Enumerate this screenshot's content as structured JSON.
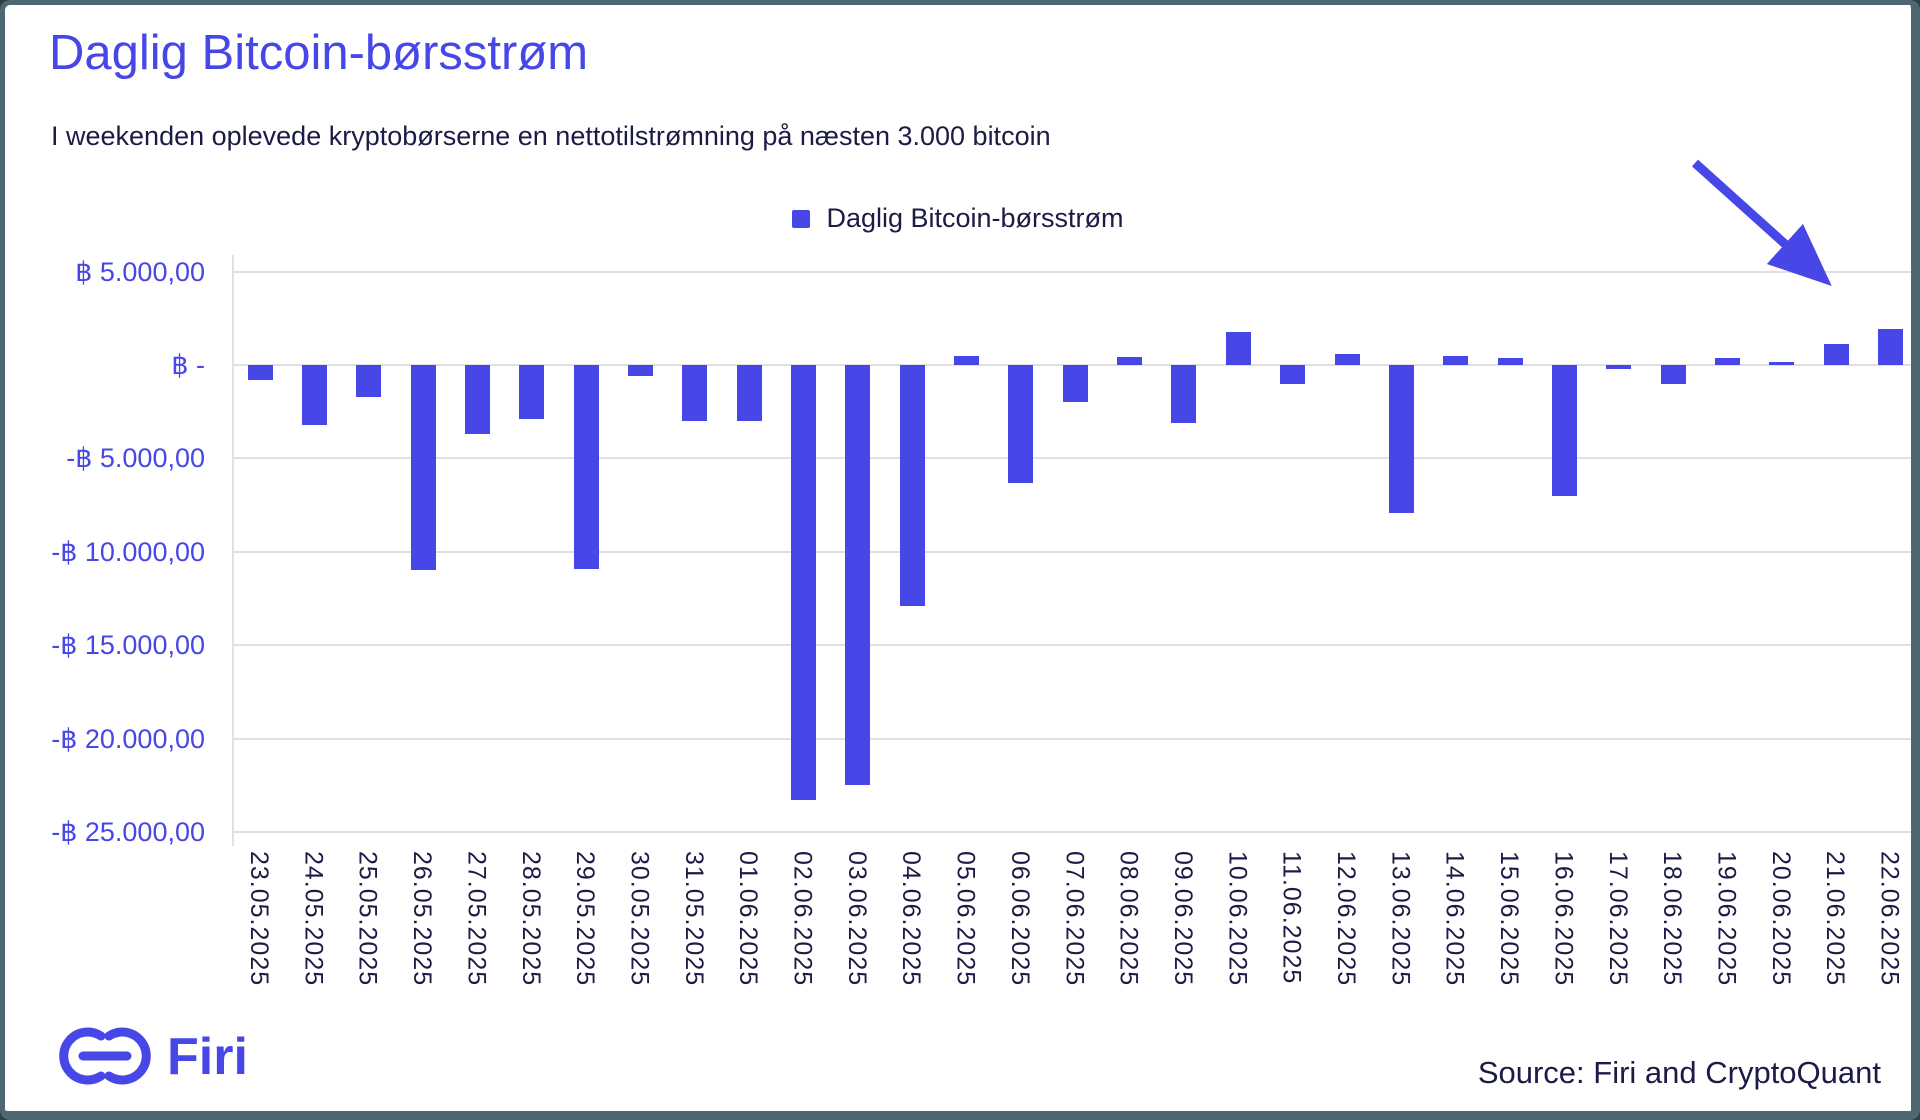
{
  "header": {
    "title": "Daglig Bitcoin-børsstrøm",
    "subtitle": "I weekenden oplevede kryptobørserne en nettotilstrømning på næsten 3.000 bitcoin"
  },
  "legend": {
    "label": "Daglig Bitcoin-børsstrøm"
  },
  "chart_data": {
    "type": "bar",
    "title": "Daglig Bitcoin-børsstrøm",
    "series_name": "Daglig Bitcoin-børsstrøm",
    "categories": [
      "23.05.2025",
      "24.05.2025",
      "25.05.2025",
      "26.05.2025",
      "27.05.2025",
      "28.05.2025",
      "29.05.2025",
      "30.05.2025",
      "31.05.2025",
      "01.06.2025",
      "02.06.2025",
      "03.06.2025",
      "04.06.2025",
      "05.06.2025",
      "06.06.2025",
      "07.06.2025",
      "08.06.2025",
      "09.06.2025",
      "10.06.2025",
      "11.06.2025",
      "12.06.2025",
      "13.06.2025",
      "14.06.2025",
      "15.06.2025",
      "16.06.2025",
      "17.06.2025",
      "18.06.2025",
      "19.06.2025",
      "20.06.2025",
      "21.06.2025",
      "22.06.2025"
    ],
    "values": [
      -800,
      -3200,
      -1700,
      -11000,
      -3700,
      -2900,
      -10900,
      -600,
      -3000,
      -3000,
      -23300,
      -22500,
      -12900,
      500,
      -6300,
      -2000,
      450,
      -3100,
      1750,
      -1000,
      600,
      -7900,
      500,
      400,
      -7000,
      -200,
      -1000,
      400,
      150,
      1100,
      1950
    ],
    "unit": "BTC",
    "ylim": [
      -25000,
      5000
    ],
    "ytick_step": 5000,
    "yticks": [
      {
        "value": 5000,
        "label": "฿ 5.000,00"
      },
      {
        "value": 0,
        "label": "฿ -"
      },
      {
        "value": -5000,
        "label": "-฿ 5.000,00"
      },
      {
        "value": -10000,
        "label": "-฿ 10.000,00"
      },
      {
        "value": -15000,
        "label": "-฿ 15.000,00"
      },
      {
        "value": -20000,
        "label": "-฿ 20.000,00"
      },
      {
        "value": -25000,
        "label": "-฿ 25.000,00"
      }
    ],
    "grid": true,
    "x_tick_rotation": 90,
    "legend_position": "top-center",
    "annotation": {
      "shape": "arrow",
      "points_to": "22.06.2025"
    }
  },
  "footer": {
    "brand": "Firi",
    "source": "Source: Firi and CryptoQuant"
  },
  "colors": {
    "accent": "#4747E8",
    "text_dark": "#1B1B46",
    "grid": "#E0E0E0",
    "border": "#4E6871",
    "background": "#FFFFFF"
  }
}
